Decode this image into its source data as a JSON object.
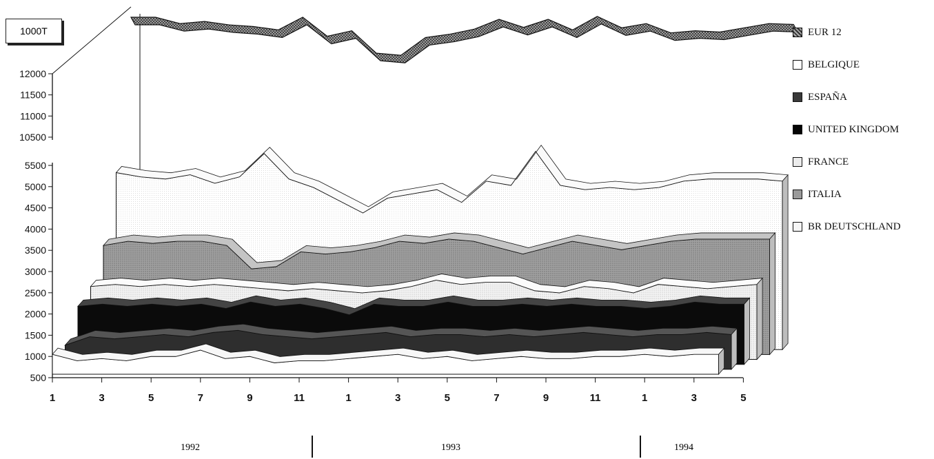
{
  "chart_data": {
    "type": "area",
    "unit_label": "1000T",
    "upper_axis": {
      "ticks": [
        "12000",
        "11500",
        "11000",
        "10500"
      ],
      "range": [
        10500,
        12000
      ]
    },
    "lower_axis": {
      "ticks": [
        "5500",
        "5000",
        "4500",
        "4000",
        "3500",
        "3000",
        "2500",
        "2000",
        "1500",
        "1000",
        "500"
      ],
      "range": [
        500,
        5500
      ]
    },
    "x_tick_labels": [
      "1",
      "3",
      "5",
      "7",
      "9",
      "11",
      "1",
      "3",
      "5",
      "7",
      "9",
      "11",
      "1",
      "3",
      "5"
    ],
    "years": [
      "1992",
      "1993",
      "1994"
    ],
    "series": [
      {
        "name": "EUR 12",
        "color": "#7a7a7a",
        "values": [
          12000,
          12000,
          11850,
          11900,
          11820,
          11780,
          11700,
          12000,
          11550,
          11680,
          11150,
          11100,
          11520,
          11600,
          11720,
          11950,
          11760,
          11950,
          11700,
          12020,
          11750,
          11850,
          11630,
          11680,
          11650,
          11750,
          11850,
          11830
        ]
      },
      {
        "name": "BELGIQUE",
        "color": "#ffffff",
        "values": [
          1050,
          900,
          950,
          900,
          1000,
          1000,
          1150,
          950,
          1000,
          850,
          900,
          900,
          950,
          1000,
          1050,
          950,
          1000,
          900,
          950,
          1000,
          950,
          950,
          1000,
          1000,
          1050,
          1000,
          1050,
          1050
        ]
      },
      {
        "name": "ESPAÑA",
        "color": "#3a3a3a",
        "values": [
          1150,
          1350,
          1300,
          1350,
          1400,
          1350,
          1450,
          1500,
          1400,
          1350,
          1300,
          1350,
          1400,
          1450,
          1350,
          1400,
          1400,
          1350,
          1400,
          1350,
          1400,
          1450,
          1400,
          1350,
          1400,
          1400,
          1450,
          1400
        ]
      },
      {
        "name": "UNITED KINGDOM",
        "color": "#0a0a0a",
        "values": [
          1950,
          2000,
          1950,
          2000,
          1950,
          2000,
          1900,
          2050,
          1950,
          2000,
          1900,
          1750,
          2000,
          1950,
          1950,
          2050,
          1950,
          1950,
          2000,
          1950,
          2000,
          1950,
          1950,
          1900,
          1950,
          2050,
          2000,
          2000
        ]
      },
      {
        "name": "FRANCE",
        "color": "#e4e4e4",
        "values": [
          2300,
          2350,
          2300,
          2350,
          2300,
          2350,
          2300,
          2250,
          2200,
          2250,
          2200,
          2150,
          2200,
          2300,
          2450,
          2350,
          2400,
          2400,
          2200,
          2150,
          2300,
          2250,
          2150,
          2350,
          2300,
          2250,
          2300,
          2350
        ]
      },
      {
        "name": "ITALIA",
        "color": "#9a9a9a",
        "values": [
          3150,
          3250,
          3200,
          3250,
          3250,
          3150,
          2600,
          2650,
          3000,
          2950,
          3000,
          3100,
          3250,
          3200,
          3300,
          3250,
          3100,
          2950,
          3100,
          3250,
          3150,
          3050,
          3150,
          3250,
          3300,
          3300,
          3300,
          3300
        ]
      },
      {
        "name": "BR DEUTSCHLAND",
        "color": "#f1f1f1",
        "values": [
          4750,
          4650,
          4600,
          4700,
          4500,
          4650,
          5200,
          4600,
          4400,
          4100,
          3800,
          4150,
          4250,
          4350,
          4050,
          4550,
          4450,
          5250,
          4450,
          4350,
          4400,
          4350,
          4400,
          4550,
          4600,
          4600,
          4600,
          4550
        ]
      }
    ]
  }
}
